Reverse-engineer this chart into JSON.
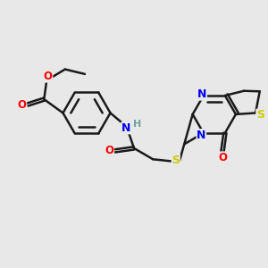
{
  "bg_color": "#e8e8e8",
  "bond_color": "#1a1a1a",
  "atom_colors": {
    "O": "#ff0000",
    "N": "#0000ee",
    "S": "#cccc00",
    "H": "#6fa0a0",
    "C": "#1a1a1a"
  },
  "figsize": [
    3.0,
    3.0
  ],
  "dpi": 100,
  "xlim": [
    0,
    10
  ],
  "ylim": [
    0,
    10
  ]
}
